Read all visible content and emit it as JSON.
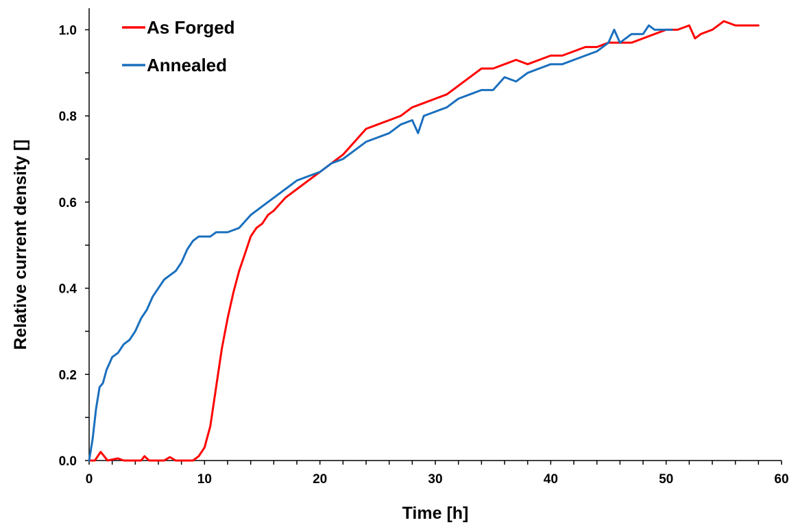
{
  "chart_data": {
    "type": "line",
    "xlabel": "Time [h]",
    "ylabel": "Relative current density []",
    "xlim": [
      0,
      60
    ],
    "ylim": [
      0,
      1.05
    ],
    "x_ticks": [
      "0",
      "10",
      "20",
      "30",
      "40",
      "50",
      "60"
    ],
    "y_ticks": [
      "0.0",
      "0.2",
      "0.4",
      "0.6",
      "0.8",
      "1.0"
    ],
    "x_minor_step": 2,
    "y_minor_step": 0.1,
    "grid": false,
    "legend": "top-left",
    "series": [
      {
        "name": "As Forged",
        "color": "#ff0000",
        "points": [
          [
            0,
            0.0
          ],
          [
            0.5,
            0.0
          ],
          [
            1.0,
            0.02
          ],
          [
            1.3,
            0.01
          ],
          [
            1.6,
            0.0
          ],
          [
            2.5,
            0.005
          ],
          [
            3.0,
            0.0
          ],
          [
            4.5,
            0.0
          ],
          [
            4.8,
            0.01
          ],
          [
            5.2,
            0.0
          ],
          [
            6.5,
            0.0
          ],
          [
            7.0,
            0.008
          ],
          [
            7.5,
            0.0
          ],
          [
            9.0,
            0.0
          ],
          [
            9.5,
            0.01
          ],
          [
            10.0,
            0.03
          ],
          [
            10.5,
            0.08
          ],
          [
            11.0,
            0.17
          ],
          [
            11.5,
            0.26
          ],
          [
            12.0,
            0.33
          ],
          [
            12.5,
            0.39
          ],
          [
            13.0,
            0.44
          ],
          [
            13.5,
            0.48
          ],
          [
            14.0,
            0.52
          ],
          [
            14.5,
            0.54
          ],
          [
            15.0,
            0.55
          ],
          [
            15.5,
            0.57
          ],
          [
            16.0,
            0.58
          ],
          [
            17.0,
            0.61
          ],
          [
            18.0,
            0.63
          ],
          [
            19.0,
            0.65
          ],
          [
            20.0,
            0.67
          ],
          [
            21.0,
            0.69
          ],
          [
            22.0,
            0.71
          ],
          [
            23.0,
            0.74
          ],
          [
            24.0,
            0.77
          ],
          [
            25.0,
            0.78
          ],
          [
            26.0,
            0.79
          ],
          [
            27.0,
            0.8
          ],
          [
            28.0,
            0.82
          ],
          [
            29.0,
            0.83
          ],
          [
            30.0,
            0.84
          ],
          [
            31.0,
            0.85
          ],
          [
            32.0,
            0.87
          ],
          [
            33.0,
            0.89
          ],
          [
            34.0,
            0.91
          ],
          [
            35.0,
            0.91
          ],
          [
            36.0,
            0.92
          ],
          [
            37.0,
            0.93
          ],
          [
            38.0,
            0.92
          ],
          [
            39.0,
            0.93
          ],
          [
            40.0,
            0.94
          ],
          [
            41.0,
            0.94
          ],
          [
            42.0,
            0.95
          ],
          [
            43.0,
            0.96
          ],
          [
            44.0,
            0.96
          ],
          [
            45.0,
            0.97
          ],
          [
            46.0,
            0.97
          ],
          [
            47.0,
            0.97
          ],
          [
            48.0,
            0.98
          ],
          [
            49.0,
            0.99
          ],
          [
            50.0,
            1.0
          ],
          [
            51.0,
            1.0
          ],
          [
            52.0,
            1.01
          ],
          [
            52.5,
            0.98
          ],
          [
            53.0,
            0.99
          ],
          [
            54.0,
            1.0
          ],
          [
            55.0,
            1.02
          ],
          [
            56.0,
            1.01
          ],
          [
            57.0,
            1.01
          ],
          [
            58.0,
            1.01
          ]
        ]
      },
      {
        "name": "Annealed",
        "color": "#1a6fbd",
        "points": [
          [
            0,
            0.0
          ],
          [
            0.3,
            0.05
          ],
          [
            0.6,
            0.12
          ],
          [
            0.9,
            0.17
          ],
          [
            1.2,
            0.18
          ],
          [
            1.5,
            0.21
          ],
          [
            2.0,
            0.24
          ],
          [
            2.5,
            0.25
          ],
          [
            3.0,
            0.27
          ],
          [
            3.5,
            0.28
          ],
          [
            4.0,
            0.3
          ],
          [
            4.5,
            0.33
          ],
          [
            5.0,
            0.35
          ],
          [
            5.5,
            0.38
          ],
          [
            6.0,
            0.4
          ],
          [
            6.5,
            0.42
          ],
          [
            7.0,
            0.43
          ],
          [
            7.5,
            0.44
          ],
          [
            8.0,
            0.46
          ],
          [
            8.5,
            0.49
          ],
          [
            9.0,
            0.51
          ],
          [
            9.5,
            0.52
          ],
          [
            10.0,
            0.52
          ],
          [
            10.5,
            0.52
          ],
          [
            11.0,
            0.53
          ],
          [
            12.0,
            0.53
          ],
          [
            13.0,
            0.54
          ],
          [
            14.0,
            0.57
          ],
          [
            15.0,
            0.59
          ],
          [
            16.0,
            0.61
          ],
          [
            17.0,
            0.63
          ],
          [
            18.0,
            0.65
          ],
          [
            19.0,
            0.66
          ],
          [
            20.0,
            0.67
          ],
          [
            21.0,
            0.69
          ],
          [
            22.0,
            0.7
          ],
          [
            23.0,
            0.72
          ],
          [
            24.0,
            0.74
          ],
          [
            25.0,
            0.75
          ],
          [
            26.0,
            0.76
          ],
          [
            27.0,
            0.78
          ],
          [
            28.0,
            0.79
          ],
          [
            28.5,
            0.76
          ],
          [
            29.0,
            0.8
          ],
          [
            30.0,
            0.81
          ],
          [
            31.0,
            0.82
          ],
          [
            32.0,
            0.84
          ],
          [
            33.0,
            0.85
          ],
          [
            34.0,
            0.86
          ],
          [
            35.0,
            0.86
          ],
          [
            36.0,
            0.89
          ],
          [
            37.0,
            0.88
          ],
          [
            38.0,
            0.9
          ],
          [
            39.0,
            0.91
          ],
          [
            40.0,
            0.92
          ],
          [
            41.0,
            0.92
          ],
          [
            42.0,
            0.93
          ],
          [
            43.0,
            0.94
          ],
          [
            44.0,
            0.95
          ],
          [
            45.0,
            0.97
          ],
          [
            45.5,
            1.0
          ],
          [
            46.0,
            0.97
          ],
          [
            47.0,
            0.99
          ],
          [
            48.0,
            0.99
          ],
          [
            48.5,
            1.01
          ],
          [
            49.0,
            1.0
          ],
          [
            50.0,
            1.0
          ],
          [
            50.5,
            1.0
          ]
        ]
      }
    ]
  }
}
